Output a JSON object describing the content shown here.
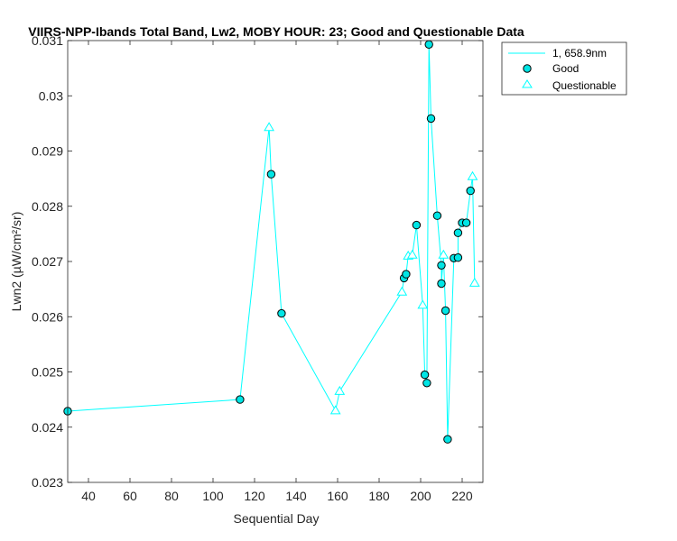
{
  "chart_data": {
    "type": "line",
    "title": "VIIRS-NPP-Ibands Total Band, Lw2, MOBY HOUR: 23;  Good and Questionable Data",
    "xlabel": "Sequential Day",
    "ylabel": "Lwn2 (µW/cm²/sr)",
    "xlim": [
      30,
      230
    ],
    "ylim": [
      0.023,
      0.031
    ],
    "xticks": [
      40,
      60,
      80,
      100,
      120,
      140,
      160,
      180,
      200,
      220
    ],
    "yticks": [
      0.023,
      0.024,
      0.025,
      0.026,
      0.027,
      0.028,
      0.029,
      0.03,
      0.031
    ],
    "ytick_labels": [
      "0.023",
      "0.024",
      "0.025",
      "0.026",
      "0.027",
      "0.028",
      "0.029",
      "0.03",
      "0.031"
    ],
    "grid": false,
    "legend_position": "outside-top-right",
    "line": {
      "name": "1, 658.9nm",
      "color": "#00ffff",
      "x": [
        30,
        113,
        127,
        128,
        133,
        159,
        161,
        191,
        192,
        193,
        194,
        196,
        198,
        201,
        202,
        203,
        204,
        205,
        208,
        210,
        210,
        211,
        212,
        213,
        216,
        218,
        218,
        220,
        222,
        224,
        225,
        226
      ],
      "y": [
        0.02429,
        0.0245,
        0.02943,
        0.02858,
        0.02606,
        0.0243,
        0.02465,
        0.02645,
        0.0267,
        0.02677,
        0.0271,
        0.02712,
        0.02766,
        0.02621,
        0.02495,
        0.0248,
        0.03093,
        0.02959,
        0.02783,
        0.02693,
        0.0266,
        0.02712,
        0.02611,
        0.02378,
        0.02706,
        0.02707,
        0.02752,
        0.0277,
        0.0277,
        0.02828,
        0.02854,
        0.02661
      ]
    },
    "series": [
      {
        "name": "Good",
        "marker": "circle",
        "color": "#00e5e5",
        "x": [
          30,
          113,
          128,
          133,
          192,
          193,
          198,
          202,
          203,
          204,
          205,
          208,
          210,
          210,
          212,
          213,
          216,
          218,
          218,
          220,
          222,
          224
        ],
        "y": [
          0.02429,
          0.0245,
          0.02858,
          0.02606,
          0.0267,
          0.02677,
          0.02766,
          0.02495,
          0.0248,
          0.03093,
          0.02959,
          0.02783,
          0.02693,
          0.0266,
          0.02611,
          0.02378,
          0.02706,
          0.02707,
          0.02752,
          0.0277,
          0.0277,
          0.02828
        ]
      },
      {
        "name": "Questionable",
        "marker": "triangle",
        "color": "#00ffff",
        "x": [
          127,
          159,
          161,
          191,
          194,
          196,
          201,
          211,
          225,
          226
        ],
        "y": [
          0.02943,
          0.0243,
          0.02465,
          0.02645,
          0.0271,
          0.02712,
          0.02621,
          0.02712,
          0.02854,
          0.02661
        ]
      }
    ]
  }
}
